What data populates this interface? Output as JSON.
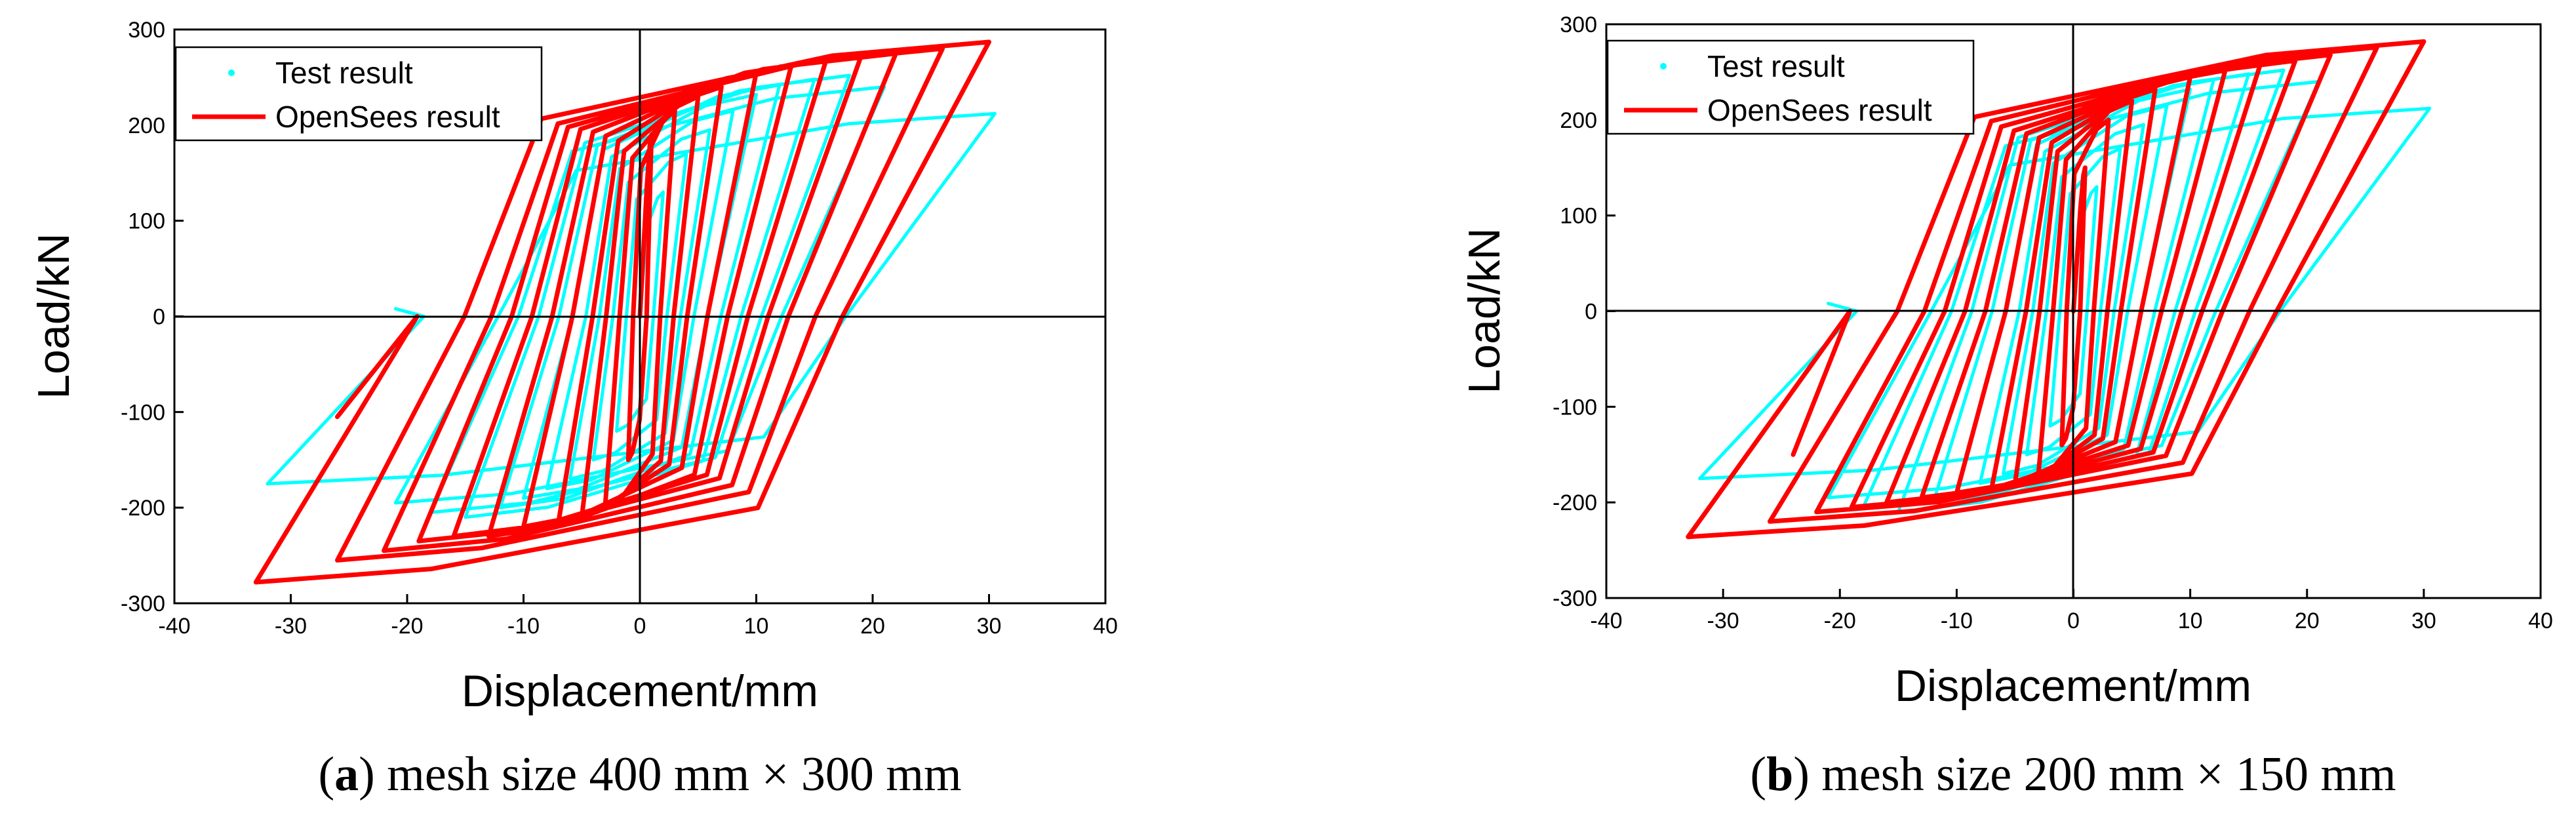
{
  "figure": {
    "panels": [
      {
        "id": "a",
        "caption_open": "(",
        "caption_letter": "a",
        "caption_rest": ") mesh size 400 mm × 300 mm"
      },
      {
        "id": "b",
        "caption_open": "(",
        "caption_letter": "b",
        "caption_rest": ") mesh size 200 mm × 150 mm"
      }
    ],
    "colors": {
      "test": "#00FFFF",
      "opensees": "#FF0000",
      "axis": "#000000"
    }
  },
  "chart_data": [
    {
      "type": "line",
      "title": "",
      "xlabel": "Displacement/mm",
      "ylabel": "Load/kN",
      "xlim": [
        -40,
        40
      ],
      "ylim": [
        -300,
        300
      ],
      "xticks": [
        -40,
        -30,
        -20,
        -10,
        0,
        10,
        20,
        30,
        40
      ],
      "yticks": [
        -300,
        -200,
        -100,
        0,
        100,
        200,
        300
      ],
      "legend_position": "top-left",
      "legend": [
        "Test result",
        "OpenSees result"
      ],
      "series": [
        {
          "name": "Test result",
          "marker": "dot",
          "peaks": [
            [
              2,
              130,
              -2,
              -120
            ],
            [
              4,
              170,
              -4,
              -150
            ],
            [
              6,
              195,
              -6,
              -170
            ],
            [
              8,
              215,
              -8,
              -180
            ],
            [
              10,
              232,
              -10,
              -190
            ],
            [
              12,
              242,
              -12,
              -200
            ],
            [
              15,
              248,
              -15,
              -210
            ],
            [
              18,
              252,
              -18,
              -205
            ],
            [
              21,
              240,
              -21,
              -195
            ],
            [
              30.5,
              212,
              -32,
              -175
            ]
          ],
          "end_point": [
            -21,
            8
          ]
        },
        {
          "name": "OpenSees result",
          "marker": "line",
          "peaks": [
            [
              1,
              190,
              -1,
              -150
            ],
            [
              3,
              215,
              -3,
              -200
            ],
            [
              5,
              230,
              -5,
              -210
            ],
            [
              7,
              240,
              -7,
              -215
            ],
            [
              10,
              255,
              -10,
              -220
            ],
            [
              13,
              262,
              -13,
              -230
            ],
            [
              16,
              268,
              -16,
              -230
            ],
            [
              19,
              272,
              -19,
              -235
            ],
            [
              22,
              275,
              -22,
              -245
            ],
            [
              26,
              280,
              -26,
              -255
            ],
            [
              30,
              287,
              -33,
              -278
            ]
          ],
          "end_point": [
            -26,
            -105
          ]
        }
      ]
    },
    {
      "type": "line",
      "title": "",
      "xlabel": "Displacement/mm",
      "ylabel": "Load/kN",
      "xlim": [
        -40,
        40
      ],
      "ylim": [
        -300,
        300
      ],
      "xticks": [
        -40,
        -30,
        -20,
        -10,
        0,
        10,
        20,
        30,
        40
      ],
      "yticks": [
        -300,
        -200,
        -100,
        0,
        100,
        200,
        300
      ],
      "legend_position": "top-left",
      "legend": [
        "Test result",
        "OpenSees result"
      ],
      "series": [
        {
          "name": "Test result",
          "marker": "dot",
          "peaks": [
            [
              2,
              130,
              -2,
              -120
            ],
            [
              4,
              170,
              -4,
              -150
            ],
            [
              6,
              195,
              -6,
              -170
            ],
            [
              8,
              215,
              -8,
              -180
            ],
            [
              10,
              232,
              -10,
              -190
            ],
            [
              12,
              242,
              -12,
              -200
            ],
            [
              15,
              248,
              -15,
              -210
            ],
            [
              18,
              252,
              -18,
              -205
            ],
            [
              21,
              240,
              -21,
              -195
            ],
            [
              30.5,
              212,
              -32,
              -175
            ]
          ],
          "end_point": [
            -21,
            8
          ]
        },
        {
          "name": "OpenSees result",
          "marker": "line",
          "peaks": [
            [
              1,
              150,
              -1,
              -140
            ],
            [
              3,
              200,
              -3,
              -170
            ],
            [
              5,
              220,
              -5,
              -180
            ],
            [
              7,
              232,
              -7,
              -185
            ],
            [
              10,
              245,
              -10,
              -190
            ],
            [
              13,
              252,
              -13,
              -195
            ],
            [
              16,
              258,
              -16,
              -200
            ],
            [
              19,
              262,
              -19,
              -205
            ],
            [
              22,
              268,
              -22,
              -210
            ],
            [
              26,
              276,
              -26,
              -220
            ],
            [
              30,
              282,
              -33,
              -236
            ]
          ],
          "end_point": [
            -24,
            -150
          ]
        }
      ]
    }
  ]
}
